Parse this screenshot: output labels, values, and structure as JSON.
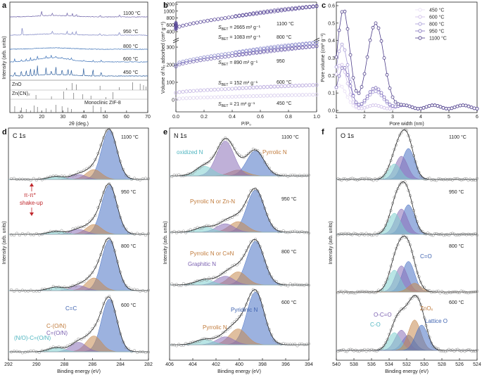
{
  "figure": {
    "panel_letters": [
      "a",
      "b",
      "c",
      "d",
      "e",
      "f"
    ]
  },
  "chart_data": [
    {
      "id": "a",
      "type": "line",
      "xlabel": "2θ (deg.)",
      "ylabel": "Intensity (arb. units)",
      "xlim": [
        5,
        70
      ],
      "xticks": [
        10,
        20,
        30,
        40,
        50,
        60,
        70
      ],
      "series": [
        {
          "name": "1100 °C",
          "color": "#6d62a8"
        },
        {
          "name": "950 °C",
          "color": "#7f86c4"
        },
        {
          "name": "800 °C",
          "color": "#3f73b8"
        },
        {
          "name": "600 °C",
          "color": "#3f73b8"
        },
        {
          "name": "450 °C",
          "color": "#2e5f9e"
        }
      ],
      "references": [
        {
          "name": "ZnO",
          "peaks": [
            31.8,
            34.4,
            36.3,
            47.5,
            56.6,
            62.9,
            66.4,
            68.0,
            69.1
          ]
        },
        {
          "name": "Zn(CN)2",
          "peaks": [
            17.3,
            24.6,
            30.3,
            35.1,
            39.4,
            43.2,
            50.3,
            53.6
          ]
        },
        {
          "name": "Monoclinic ZIF-8",
          "peaks": [
            7.3,
            10.4,
            12.7,
            14.7,
            16.4,
            18.0,
            22.1,
            24.5,
            26.7,
            29.6,
            32.4,
            34.0,
            39.8,
            44.2,
            48.0
          ]
        }
      ]
    },
    {
      "id": "b",
      "type": "scatter",
      "xlabel": "P/P0",
      "ylabel": "Volume of N2 adsorbed (cm3 g-1)",
      "xlim": [
        0,
        1
      ],
      "xticks": [
        "0.0",
        "0.2",
        "0.4",
        "0.6",
        "0.8",
        "1.0"
      ],
      "yticks_upper": [
        "400",
        "600",
        "800",
        "1000",
        "1200"
      ],
      "yticks_lower": [
        "0",
        "100",
        "200",
        "300"
      ],
      "series": [
        {
          "name": "1100 °C",
          "sbet": "SBET = 2665 m2 g-1",
          "color": "#5b4a9a",
          "ylow": 480,
          "yhigh": 1140
        },
        {
          "name": "800 °C",
          "sbet": "SBET = 1083 m2 g-1",
          "color": "#8f8fcf",
          "ylow": 200,
          "yhigh": 325
        },
        {
          "name": "950 °C",
          "sbet": "SBET = 890 m2 g-1",
          "color": "#7b6db5",
          "ylow": 190,
          "yhigh": 305
        },
        {
          "name": "600 °C",
          "sbet": "SBET = 152 m2 g-1",
          "color": "#c2b4e2",
          "ylow": 40,
          "yhigh": 85
        },
        {
          "name": "450 °C",
          "sbet": "SBET = 21 m2 g-1",
          "color": "#ddd4ef",
          "ylow": 5,
          "yhigh": 30
        }
      ]
    },
    {
      "id": "c",
      "type": "line",
      "xlabel": "Pore width (nm)",
      "ylabel": "Pore volume (cm3 g-1)",
      "xlim": [
        1,
        6
      ],
      "ylim": [
        0.0,
        0.6
      ],
      "xticks": [
        "1",
        "2",
        "3",
        "4",
        "5",
        "6"
      ],
      "yticks": [
        "0.0",
        "0.1",
        "0.2",
        "0.3",
        "0.4",
        "0.5",
        "0.6"
      ],
      "series": [
        {
          "name": "450 °C",
          "color": "#e8def5",
          "peaks": [
            [
              1.1,
              0.12
            ]
          ]
        },
        {
          "name": "600 °C",
          "color": "#cdbde8",
          "peaks": [
            [
              1.15,
              0.24
            ]
          ]
        },
        {
          "name": "800 °C",
          "color": "#a69ad6",
          "peaks": [
            [
              1.2,
              0.35
            ],
            [
              2.4,
              0.08
            ]
          ]
        },
        {
          "name": "950 °C",
          "color": "#7f6fbb",
          "peaks": [
            [
              1.25,
              0.22
            ],
            [
              2.4,
              0.1
            ]
          ]
        },
        {
          "name": "1100 °C",
          "color": "#4e3f8a",
          "peaks": [
            [
              1.25,
              0.55
            ],
            [
              2.4,
              0.47
            ]
          ]
        }
      ]
    },
    {
      "id": "d",
      "type": "line",
      "title": "C 1s",
      "xlabel": "Binding energy (eV)",
      "ylabel": "Intensity (arb. units)",
      "xlim": [
        292,
        282
      ],
      "xticks": [
        "292",
        "290",
        "288",
        "286",
        "284",
        "282"
      ],
      "temperatures": [
        "1100 °C",
        "950 °C",
        "800 °C",
        "600 °C"
      ],
      "components": [
        {
          "name": "C=C",
          "center": 284.8,
          "color": "#4a72c4"
        },
        {
          "name": "C-(O/N)",
          "center": 285.9,
          "color": "#c78a50"
        },
        {
          "name": "C=(O/N)",
          "center": 287.0,
          "color": "#8a6fb8"
        },
        {
          "name": "(N/O)-C=(O/N)",
          "center": 288.6,
          "color": "#7fcfcf"
        }
      ],
      "annotations": [
        "π-π*",
        "shake-up"
      ]
    },
    {
      "id": "e",
      "type": "line",
      "title": "N 1s",
      "xlabel": "Binding energy (eV)",
      "ylabel": "Intensity (arb. units)",
      "xlim": [
        406,
        394
      ],
      "xticks": [
        "406",
        "404",
        "402",
        "400",
        "398",
        "396",
        "394"
      ],
      "temperatures": [
        "1100 °C",
        "950 °C",
        "800 °C",
        "600 °C"
      ],
      "components": [
        {
          "name": "Pyridinic N",
          "center": 398.6,
          "color": "#4a72c4"
        },
        {
          "name": "Pyrrolic N",
          "center": 400.1,
          "color": "#c78a50"
        },
        {
          "name": "Graphitic N",
          "center": 401.2,
          "color": "#8a6fb8"
        },
        {
          "name": "oxidized N",
          "center": 403.0,
          "color": "#7fcfcf"
        }
      ],
      "labels": [
        "oxidized N",
        "Pyrrolic N",
        "Pyrrolic N or Zn-N",
        "Pyrrolic N or C≡N",
        "Graphitic N",
        "Pyridinic N",
        "Pyrrolic N"
      ]
    },
    {
      "id": "f",
      "type": "line",
      "title": "O 1s",
      "xlabel": "Binding energy (eV)",
      "ylabel": "Intensity (arb. units)",
      "xlim": [
        540,
        524
      ],
      "xticks": [
        "540",
        "538",
        "536",
        "534",
        "532",
        "530",
        "528",
        "526",
        "524"
      ],
      "temperatures": [
        "1100 °C",
        "950 °C",
        "800 °C",
        "600 °C"
      ],
      "components": [
        {
          "name": "C=O",
          "center": 531.8,
          "color": "#4a72c4"
        },
        {
          "name": "O-C=O",
          "center": 532.6,
          "color": "#8a6fb8"
        },
        {
          "name": "C-O",
          "center": 533.4,
          "color": "#7fcfcf"
        },
        {
          "name": "ZnOx",
          "center": 531.1,
          "color": "#c78a50"
        },
        {
          "name": "Lattice O",
          "center": 530.3,
          "color": "#4a72c4"
        }
      ]
    }
  ],
  "text": {
    "a_title_ticks": [
      "10",
      "20",
      "30",
      "40",
      "50",
      "60",
      "70"
    ],
    "a_temps": [
      "1100 °C",
      "950 °C",
      "800 °C",
      "600 °C",
      "450 °C"
    ],
    "a_refs": [
      "ZnO",
      "Zn(CN)₂",
      "Monoclinic ZIF-8"
    ],
    "a_xlabel": "2θ (deg.)",
    "a_ylabel": "Intensity (arb. units)",
    "b_ylabel": "Volume of N₂ adsorbed (cm³ g⁻¹)",
    "b_xlabel": "P/P₀",
    "b_sbet": [
      "2665 m² g⁻¹",
      "1083 m² g⁻¹",
      "890 m² g⁻¹",
      "152 m² g⁻¹",
      "21 m² g⁻¹"
    ],
    "b_temps": [
      "1100 °C",
      "800 °C",
      "950",
      "600 °C",
      "450 °C"
    ],
    "c_ylabel": "Pore volume (cm³ g⁻¹)",
    "c_xlabel": "Pore width (nm)",
    "c_legend": [
      "450 °C",
      "600 °C",
      "800 °C",
      "950 °C",
      "1100 °C"
    ],
    "d_title": "C 1s",
    "e_title": "N 1s",
    "f_title": "O 1s",
    "temps4": [
      "1100 °C",
      "950 °C",
      "800 °C",
      "600 °C"
    ],
    "be": "Binding energy (eV)",
    "intensity": "Intensity (arb. units)",
    "d_ann": [
      "π-π*",
      "shake-up",
      "C=C",
      "C-(O/N)",
      "C=(O/N)",
      "(N/O)-C=(O/N)"
    ],
    "e_ann": [
      "oxidized N",
      "Pyrrolic N",
      "Pyrrolic N or Zn-N",
      "Pyrrolic N or C≡N",
      "Graphitic N",
      "Pyridinic N",
      "Pyrrolic N"
    ],
    "f_ann": [
      "C=O",
      "O-C=O",
      "ZnOₓ",
      "C-O",
      "Lattice O"
    ]
  }
}
